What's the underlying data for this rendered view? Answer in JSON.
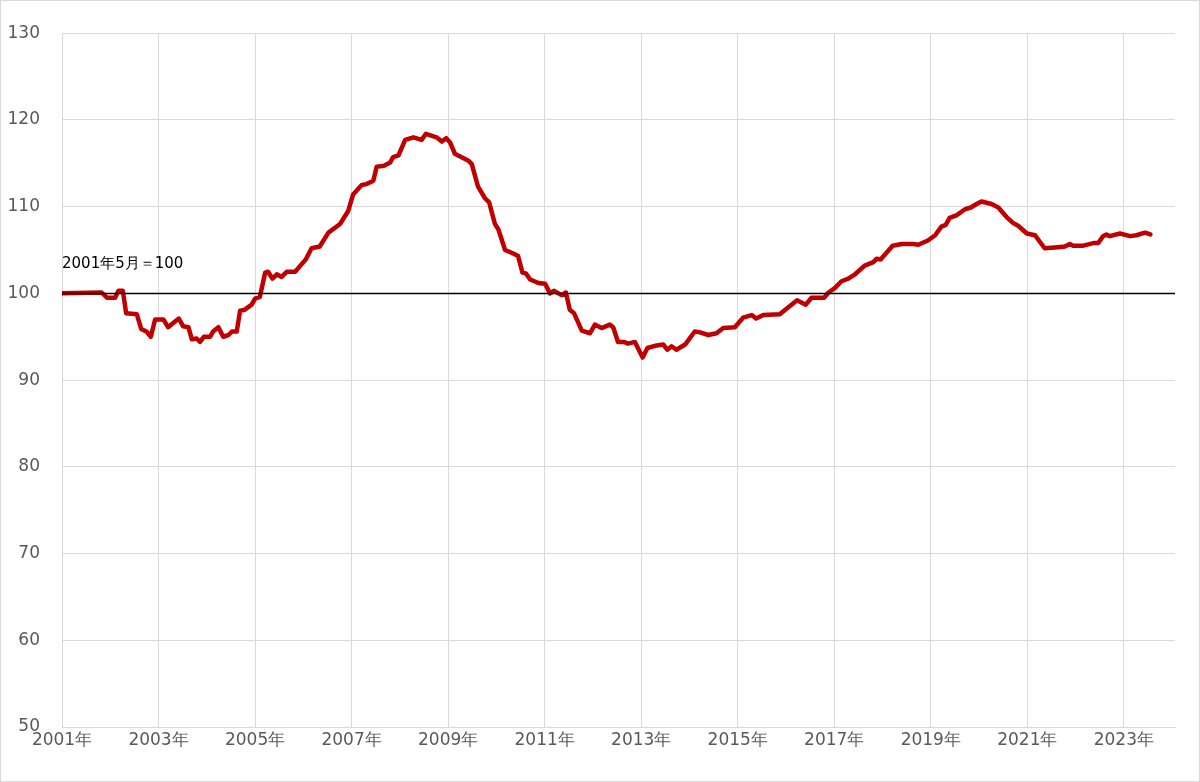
{
  "chart_data": {
    "type": "line",
    "x": [
      2001.0,
      2001.82,
      2001.93,
      2002.1,
      2002.17,
      2002.26,
      2002.33,
      2002.55,
      2002.64,
      2002.75,
      2002.84,
      2002.93,
      2003.1,
      2003.2,
      2003.31,
      2003.42,
      2003.51,
      2003.62,
      2003.69,
      2003.79,
      2003.86,
      2003.94,
      2004.07,
      2004.13,
      2004.24,
      2004.34,
      2004.45,
      2004.52,
      2004.62,
      2004.69,
      2004.78,
      2004.93,
      2005.0,
      2005.1,
      2005.21,
      2005.27,
      2005.36,
      2005.45,
      2005.55,
      2005.66,
      2005.83,
      2005.97,
      2006.05,
      2006.17,
      2006.34,
      2006.52,
      2006.76,
      2006.93,
      2007.03,
      2007.21,
      2007.31,
      2007.45,
      2007.52,
      2007.66,
      2007.8,
      2007.86,
      2007.97,
      2008.11,
      2008.28,
      2008.45,
      2008.54,
      2008.76,
      2008.87,
      2008.96,
      2009.04,
      2009.14,
      2009.42,
      2009.49,
      2009.62,
      2009.76,
      2009.85,
      2009.97,
      2010.04,
      2010.18,
      2010.35,
      2010.45,
      2010.54,
      2010.61,
      2010.7,
      2010.87,
      2011.01,
      2011.11,
      2011.19,
      2011.35,
      2011.44,
      2011.52,
      2011.61,
      2011.77,
      2011.94,
      2012.04,
      2012.18,
      2012.35,
      2012.42,
      2012.52,
      2012.64,
      2012.73,
      2012.87,
      2013.03,
      2013.13,
      2013.32,
      2013.46,
      2013.54,
      2013.63,
      2013.73,
      2013.91,
      2014.11,
      2014.22,
      2014.39,
      2014.56,
      2014.7,
      2014.94,
      2015.11,
      2015.29,
      2015.38,
      2015.53,
      2015.87,
      2016.05,
      2016.23,
      2016.41,
      2016.53,
      2016.79,
      2016.88,
      2017.01,
      2017.15,
      2017.29,
      2017.43,
      2017.63,
      2017.81,
      2017.88,
      2017.96,
      2018.21,
      2018.4,
      2018.64,
      2018.74,
      2018.94,
      2019.09,
      2019.22,
      2019.31,
      2019.39,
      2019.53,
      2019.71,
      2019.83,
      2019.95,
      2020.05,
      2020.26,
      2020.4,
      2020.57,
      2020.71,
      2020.81,
      2020.99,
      2021.16,
      2021.36,
      2021.57,
      2021.78,
      2021.88,
      2021.95,
      2022.16,
      2022.37,
      2022.47,
      2022.57,
      2022.64,
      2022.71,
      2022.92,
      2023.13,
      2023.26,
      2023.44,
      2023.55
    ],
    "series": [
      {
        "color": "#c00000",
        "values": [
          100.0,
          100.1,
          99.5,
          99.5,
          100.3,
          100.3,
          97.7,
          97.6,
          95.9,
          95.6,
          95.0,
          97.0,
          97.0,
          96.1,
          96.6,
          97.1,
          96.2,
          96.1,
          94.7,
          94.8,
          94.4,
          95.0,
          95.0,
          95.6,
          96.1,
          95.0,
          95.2,
          95.6,
          95.6,
          98.0,
          98.1,
          98.7,
          99.4,
          99.6,
          102.4,
          102.5,
          101.7,
          102.2,
          101.9,
          102.5,
          102.5,
          103.4,
          103.9,
          105.2,
          105.4,
          107.0,
          108.0,
          109.5,
          111.4,
          112.5,
          112.6,
          113.0,
          114.6,
          114.7,
          115.1,
          115.7,
          115.9,
          117.7,
          118.0,
          117.7,
          118.4,
          118.0,
          117.5,
          117.9,
          117.4,
          116.1,
          115.3,
          114.9,
          112.3,
          111.0,
          110.5,
          108.0,
          107.4,
          105.0,
          104.6,
          104.3,
          102.4,
          102.3,
          101.6,
          101.2,
          101.1,
          100.0,
          100.3,
          99.8,
          100.1,
          98.1,
          97.7,
          95.7,
          95.4,
          96.4,
          96.0,
          96.4,
          96.1,
          94.4,
          94.4,
          94.2,
          94.4,
          92.6,
          93.7,
          94.0,
          94.1,
          93.5,
          93.9,
          93.5,
          94.1,
          95.6,
          95.5,
          95.2,
          95.4,
          96.0,
          96.1,
          97.2,
          97.5,
          97.1,
          97.5,
          97.6,
          98.4,
          99.2,
          98.7,
          99.5,
          99.5,
          100.1,
          100.6,
          101.4,
          101.7,
          102.2,
          103.2,
          103.6,
          104.0,
          103.9,
          105.5,
          105.7,
          105.7,
          105.6,
          106.1,
          106.7,
          107.7,
          107.9,
          108.7,
          109.0,
          109.7,
          109.9,
          110.3,
          110.6,
          110.3,
          109.9,
          108.8,
          108.1,
          107.8,
          106.9,
          106.7,
          105.2,
          105.3,
          105.4,
          105.7,
          105.5,
          105.5,
          105.8,
          105.8,
          106.6,
          106.8,
          106.6,
          106.9,
          106.6,
          106.7,
          107.0,
          106.8
        ]
      }
    ],
    "xlim": [
      2001,
      2024.06
    ],
    "xticks": [
      {
        "value": 2001,
        "label": "2001年"
      },
      {
        "value": 2003,
        "label": "2003年"
      },
      {
        "value": 2005,
        "label": "2005年"
      },
      {
        "value": 2007,
        "label": "2007年"
      },
      {
        "value": 2009,
        "label": "2009年"
      },
      {
        "value": 2011,
        "label": "2011年"
      },
      {
        "value": 2013,
        "label": "2013年"
      },
      {
        "value": 2015,
        "label": "2015年"
      },
      {
        "value": 2017,
        "label": "2017年"
      },
      {
        "value": 2019,
        "label": "2019年"
      },
      {
        "value": 2021,
        "label": "2021年"
      },
      {
        "value": 2023,
        "label": "2023年"
      }
    ],
    "ylim": [
      50,
      130
    ],
    "yticks": [
      50,
      60,
      70,
      80,
      90,
      100,
      110,
      120,
      130
    ],
    "grid": true,
    "marker": "none",
    "line_style": "solid",
    "ref_lines": [
      {
        "axis": "y",
        "value": 100,
        "label": "2001年5月＝100",
        "color": "#000000"
      }
    ]
  }
}
